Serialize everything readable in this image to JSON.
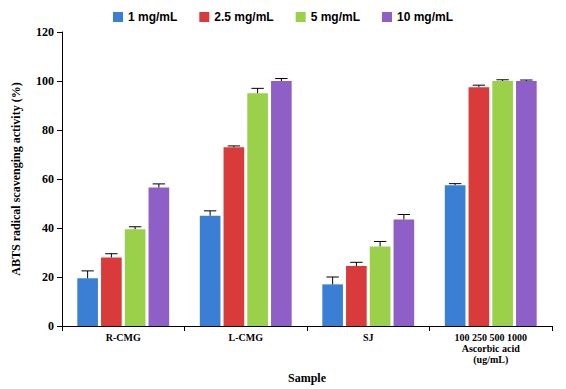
{
  "chart_data": {
    "type": "bar",
    "x_label": "Sample",
    "y_label": "ABTS radical scavenging activity (%)",
    "categories": [
      "R-CMG",
      "L-CMG",
      "SJ",
      "100 250 500 1000\nAscorbic acid\n(ug/mL)"
    ],
    "series": [
      {
        "name": "1 mg/mL",
        "color": "#3b7fd4",
        "values": [
          19.5,
          45,
          17,
          57.5
        ],
        "errors": [
          3,
          2,
          3,
          0.6
        ]
      },
      {
        "name": "2.5 mg/mL",
        "color": "#d93b3b",
        "values": [
          28,
          73,
          24.5,
          97.5
        ],
        "errors": [
          1.5,
          0.5,
          1.5,
          0.8
        ]
      },
      {
        "name": "5 mg/mL",
        "color": "#9ad04a",
        "values": [
          39.5,
          95,
          32.5,
          100
        ],
        "errors": [
          1,
          2,
          2,
          0.5
        ]
      },
      {
        "name": "10 mg/mL",
        "color": "#8e5fc7",
        "values": [
          56.5,
          100,
          43.5,
          100
        ],
        "errors": [
          1.5,
          1,
          2,
          0.4
        ]
      }
    ],
    "ylim": [
      0,
      120
    ],
    "yticks": [
      0,
      20,
      40,
      60,
      80,
      100,
      120
    ],
    "grid": false,
    "legend": "top"
  }
}
